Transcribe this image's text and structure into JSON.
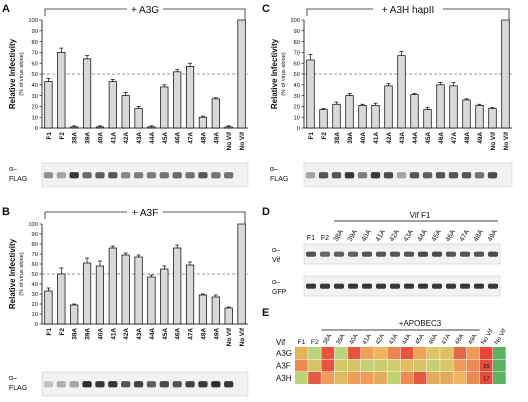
{
  "panels": {
    "A": {
      "letter": "A",
      "title": "+ A3G",
      "ylabel": "Relative Infectivity",
      "ylabel_sub": "(% of virus alone)",
      "yticks": [
        "0",
        "10",
        "20",
        "30",
        "40",
        "50",
        "60",
        "70",
        "80",
        "90",
        "100"
      ],
      "blot_labels": [
        "α–",
        "FLAG"
      ]
    },
    "B": {
      "letter": "B",
      "title": "+ A3F",
      "ylabel": "Relative Infectivity",
      "ylabel_sub": "(% of virus alone)",
      "yticks": [
        "0",
        "10",
        "20",
        "30",
        "40",
        "50",
        "60",
        "70",
        "80",
        "90",
        "100"
      ],
      "blot_labels": [
        "α–",
        "FLAG"
      ]
    },
    "C": {
      "letter": "C",
      "title": "+ A3H hapII",
      "ylabel": "Relative Infectivity",
      "ylabel_sub": "(% of virus alone)",
      "yticks": [
        "0",
        "10",
        "20",
        "30",
        "40",
        "50",
        "60",
        "70",
        "80",
        "90",
        "100"
      ],
      "blot_labels": [
        "α–",
        "FLAG"
      ]
    },
    "D": {
      "letter": "D",
      "header": "Vif F1",
      "lanes": [
        "F1",
        "F2",
        "38A",
        "39A",
        "40A",
        "41A",
        "42A",
        "43A",
        "44A",
        "45A",
        "46A",
        "47A",
        "48A",
        "49A"
      ],
      "blot1_labels": [
        "α–",
        "Vif"
      ],
      "blot2_labels": [
        "α–",
        "GFP"
      ]
    },
    "E": {
      "letter": "E",
      "header": "+APOBEC3",
      "row_title": "Vif",
      "columns": [
        "F1",
        "F2",
        "38A",
        "39A",
        "40A",
        "41A",
        "42A",
        "43A",
        "44A",
        "45A",
        "46A",
        "47A",
        "48A",
        "49A",
        "No Vif",
        "No Vif"
      ],
      "rows": [
        {
          "label": "A3G",
          "colors": [
            "#e8b257",
            "#b9d47a",
            "#e9523f",
            "#b9d47a",
            "#e9523f",
            "#eda258",
            "#f0b45d",
            "#ec8650",
            "#e9523f",
            "#eda258",
            "#d9c767",
            "#dec166",
            "#e26a48",
            "#f0995a",
            "#e8483c",
            "#5bb25f"
          ],
          "note": ""
        },
        {
          "label": "A3F",
          "colors": [
            "#ee8a4f",
            "#d8c264",
            "#e9523f",
            "#d3c965",
            "#d7c466",
            "#c3d071",
            "#cfcb6c",
            "#cbcf6d",
            "#e7b95f",
            "#d7c466",
            "#c8cf6e",
            "#d9c767",
            "#f09b58",
            "#ec8a52",
            "#e64c3d",
            "#5bb25f"
          ],
          "note": "15"
        },
        {
          "label": "A3H",
          "colors": [
            "#bcd476",
            "#e55a43",
            "#ef9d58",
            "#e1b962",
            "#ef9d58",
            "#ef9d58",
            "#e3a95d",
            "#c1d273",
            "#ec8a52",
            "#e55a43",
            "#e3a95d",
            "#e3a95d",
            "#f0b45d",
            "#ec8a52",
            "#e64c3d",
            "#5bb25f"
          ],
          "note": "17"
        }
      ]
    }
  },
  "chart_data": [
    {
      "type": "bar",
      "title": "+ A3G",
      "ylabel": "Relative Infectivity (% of virus alone)",
      "categories": [
        "F1",
        "F2",
        "38A",
        "39A",
        "40A",
        "41A",
        "42A",
        "43A",
        "44A",
        "45A",
        "46A",
        "47A",
        "48A",
        "49A",
        "No Vif",
        "No Vif"
      ],
      "values": [
        43,
        70,
        1,
        64,
        1,
        43,
        30,
        18,
        1,
        38,
        52,
        57,
        10,
        27,
        1,
        100
      ],
      "errors": [
        3,
        4,
        1,
        3,
        1,
        2,
        3,
        2,
        1,
        2,
        2,
        3,
        1,
        1,
        1,
        0
      ],
      "reference_line": 50,
      "ylim": [
        0,
        100
      ],
      "bracket": "+ A3G"
    },
    {
      "type": "bar",
      "title": "+ A3F",
      "ylabel": "Relative Infectivity (% of virus alone)",
      "categories": [
        "F1",
        "F2",
        "38A",
        "39A",
        "40A",
        "41A",
        "42A",
        "43A",
        "44A",
        "45A",
        "46A",
        "47A",
        "48A",
        "49A",
        "No Vif",
        "No Vif"
      ],
      "values": [
        33,
        50,
        19,
        61,
        58,
        76,
        69,
        67,
        47,
        55,
        76,
        59,
        29,
        27,
        16,
        100
      ],
      "errors": [
        3,
        6,
        1,
        5,
        5,
        2,
        2,
        2,
        2,
        3,
        3,
        3,
        1,
        2,
        1,
        0
      ],
      "reference_line": 50,
      "ylim": [
        0,
        100
      ],
      "bracket": "+ A3F"
    },
    {
      "type": "bar",
      "title": "+ A3H hapII",
      "ylabel": "Relative Infectivity (% of virus alone)",
      "categories": [
        "F1",
        "F2",
        "38A",
        "39A",
        "40A",
        "41A",
        "42A",
        "43A",
        "44A",
        "45A",
        "46A",
        "47A",
        "48A",
        "49A",
        "No Vif",
        "No Vif"
      ],
      "values": [
        63,
        17,
        22,
        30,
        21,
        21,
        39,
        67,
        31,
        17,
        40,
        39,
        26,
        21,
        18,
        100
      ],
      "errors": [
        5,
        1,
        2,
        2,
        1,
        2,
        2,
        4,
        1,
        2,
        2,
        3,
        1,
        1,
        1,
        0
      ],
      "reference_line": 50,
      "ylim": [
        0,
        100
      ],
      "bracket": "+ A3H hapII"
    }
  ]
}
